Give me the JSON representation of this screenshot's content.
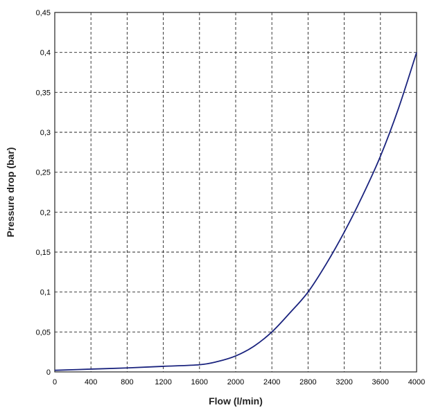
{
  "chart_data": {
    "type": "line",
    "xlabel": "Flow (l/min)",
    "ylabel": "Pressure drop (bar)",
    "xlim": [
      0,
      4000
    ],
    "ylim": [
      0,
      0.45
    ],
    "x_ticks": [
      "0",
      "400",
      "800",
      "1200",
      "1600",
      "2000",
      "2400",
      "2800",
      "3200",
      "3600",
      "4000"
    ],
    "y_ticks": [
      "0",
      "0,05",
      "0,1",
      "0,15",
      "0,2",
      "0,25",
      "0,3",
      "0,35",
      "0,4",
      "0,45"
    ],
    "grid": true,
    "colors": {
      "line": "#1a237e",
      "grid": "#222222"
    },
    "series": [
      {
        "x": [
          0,
          400,
          800,
          1200,
          1600,
          1800,
          2000,
          2200,
          2400,
          2600,
          2800,
          3000,
          3200,
          3400,
          3600,
          3800,
          4000
        ],
        "y": [
          0.002,
          0.0035,
          0.005,
          0.007,
          0.009,
          0.013,
          0.02,
          0.032,
          0.05,
          0.074,
          0.1,
          0.135,
          0.175,
          0.22,
          0.27,
          0.33,
          0.4
        ]
      }
    ]
  }
}
